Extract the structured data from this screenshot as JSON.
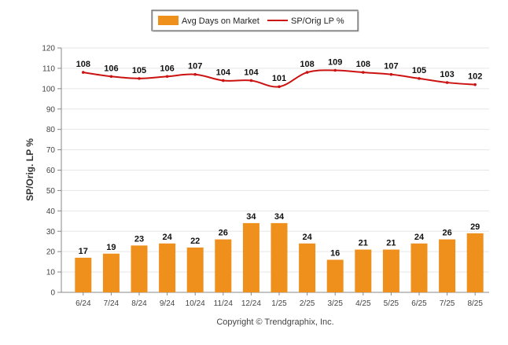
{
  "chart_data": {
    "type": "bar",
    "categories": [
      "6/24",
      "7/24",
      "8/24",
      "9/24",
      "10/24",
      "11/24",
      "12/24",
      "1/25",
      "2/25",
      "3/25",
      "4/25",
      "5/25",
      "6/25",
      "7/25",
      "8/25"
    ],
    "series": [
      {
        "name": "Avg Days on Market",
        "type": "bar",
        "color": "#f0901c",
        "values": [
          17,
          19,
          23,
          24,
          22,
          26,
          34,
          34,
          24,
          16,
          21,
          21,
          24,
          26,
          29
        ]
      },
      {
        "name": "SP/Orig LP %",
        "type": "line",
        "color": "#cc1111",
        "values": [
          108,
          106,
          105,
          106,
          107,
          104,
          104,
          101,
          108,
          109,
          108,
          107,
          105,
          103,
          102
        ]
      }
    ],
    "xlabel": "",
    "ylabel": "SP/Orig. LP %",
    "ylim": [
      0,
      120
    ],
    "yticks": [
      0,
      10,
      20,
      30,
      40,
      50,
      60,
      70,
      80,
      90,
      100,
      110,
      120
    ],
    "grid": true,
    "legend_placement": "top-center"
  },
  "footer": {
    "copyright": "Copyright © Trendgraphix, Inc."
  }
}
